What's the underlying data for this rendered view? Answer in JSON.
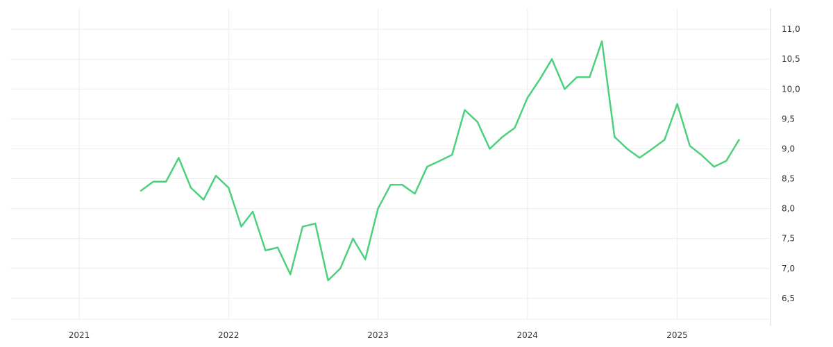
{
  "chart_data": {
    "type": "line",
    "title": "",
    "xlabel": "",
    "ylabel": "",
    "x_ticks": [
      "2021",
      "2022",
      "2023",
      "2024",
      "2025"
    ],
    "y_ticks": [
      "6,5",
      "7,0",
      "7,5",
      "8,0",
      "8,5",
      "9,0",
      "9,5",
      "10,0",
      "10,5",
      "11,0"
    ],
    "y_tick_values": [
      6.5,
      7.0,
      7.5,
      8.0,
      8.5,
      9.0,
      9.5,
      10.0,
      10.5,
      11.0
    ],
    "ylim": [
      6.15,
      11.35
    ],
    "xlim": [
      "2020-07-17",
      "2025-08-17"
    ],
    "grid": true,
    "legend": "none",
    "line_color": "#4cd07d",
    "series": [
      {
        "x": [
          "2021-06",
          "2021-07",
          "2021-08",
          "2021-09",
          "2021-10",
          "2021-11",
          "2021-12",
          "2022-01",
          "2022-02",
          "2022-03",
          "2022-04",
          "2022-05",
          "2022-06",
          "2022-07",
          "2022-08",
          "2022-09",
          "2022-10",
          "2022-11",
          "2022-12",
          "2023-01",
          "2023-02",
          "2023-03",
          "2023-04",
          "2023-05",
          "2023-06",
          "2023-07",
          "2023-08",
          "2023-09",
          "2023-10",
          "2023-11",
          "2023-12",
          "2024-01",
          "2024-02",
          "2024-03",
          "2024-04",
          "2024-05",
          "2024-06",
          "2024-07",
          "2024-08",
          "2024-09",
          "2024-10",
          "2024-11",
          "2024-12",
          "2025-01",
          "2025-02",
          "2025-03",
          "2025-04",
          "2025-05",
          "2025-06"
        ],
        "values": [
          8.3,
          8.45,
          8.45,
          8.85,
          8.35,
          8.15,
          8.55,
          8.35,
          7.7,
          7.95,
          7.3,
          7.35,
          6.9,
          7.7,
          7.75,
          6.8,
          7.0,
          7.5,
          7.15,
          8.0,
          8.4,
          8.4,
          8.25,
          8.7,
          8.8,
          8.9,
          9.65,
          9.45,
          9.0,
          9.2,
          9.35,
          9.85,
          10.17,
          10.5,
          10.0,
          10.2,
          10.2,
          10.8,
          9.2,
          9.0,
          8.85,
          9.0,
          9.15,
          9.75,
          9.05,
          8.9,
          8.7,
          8.8,
          9.15
        ]
      }
    ]
  }
}
